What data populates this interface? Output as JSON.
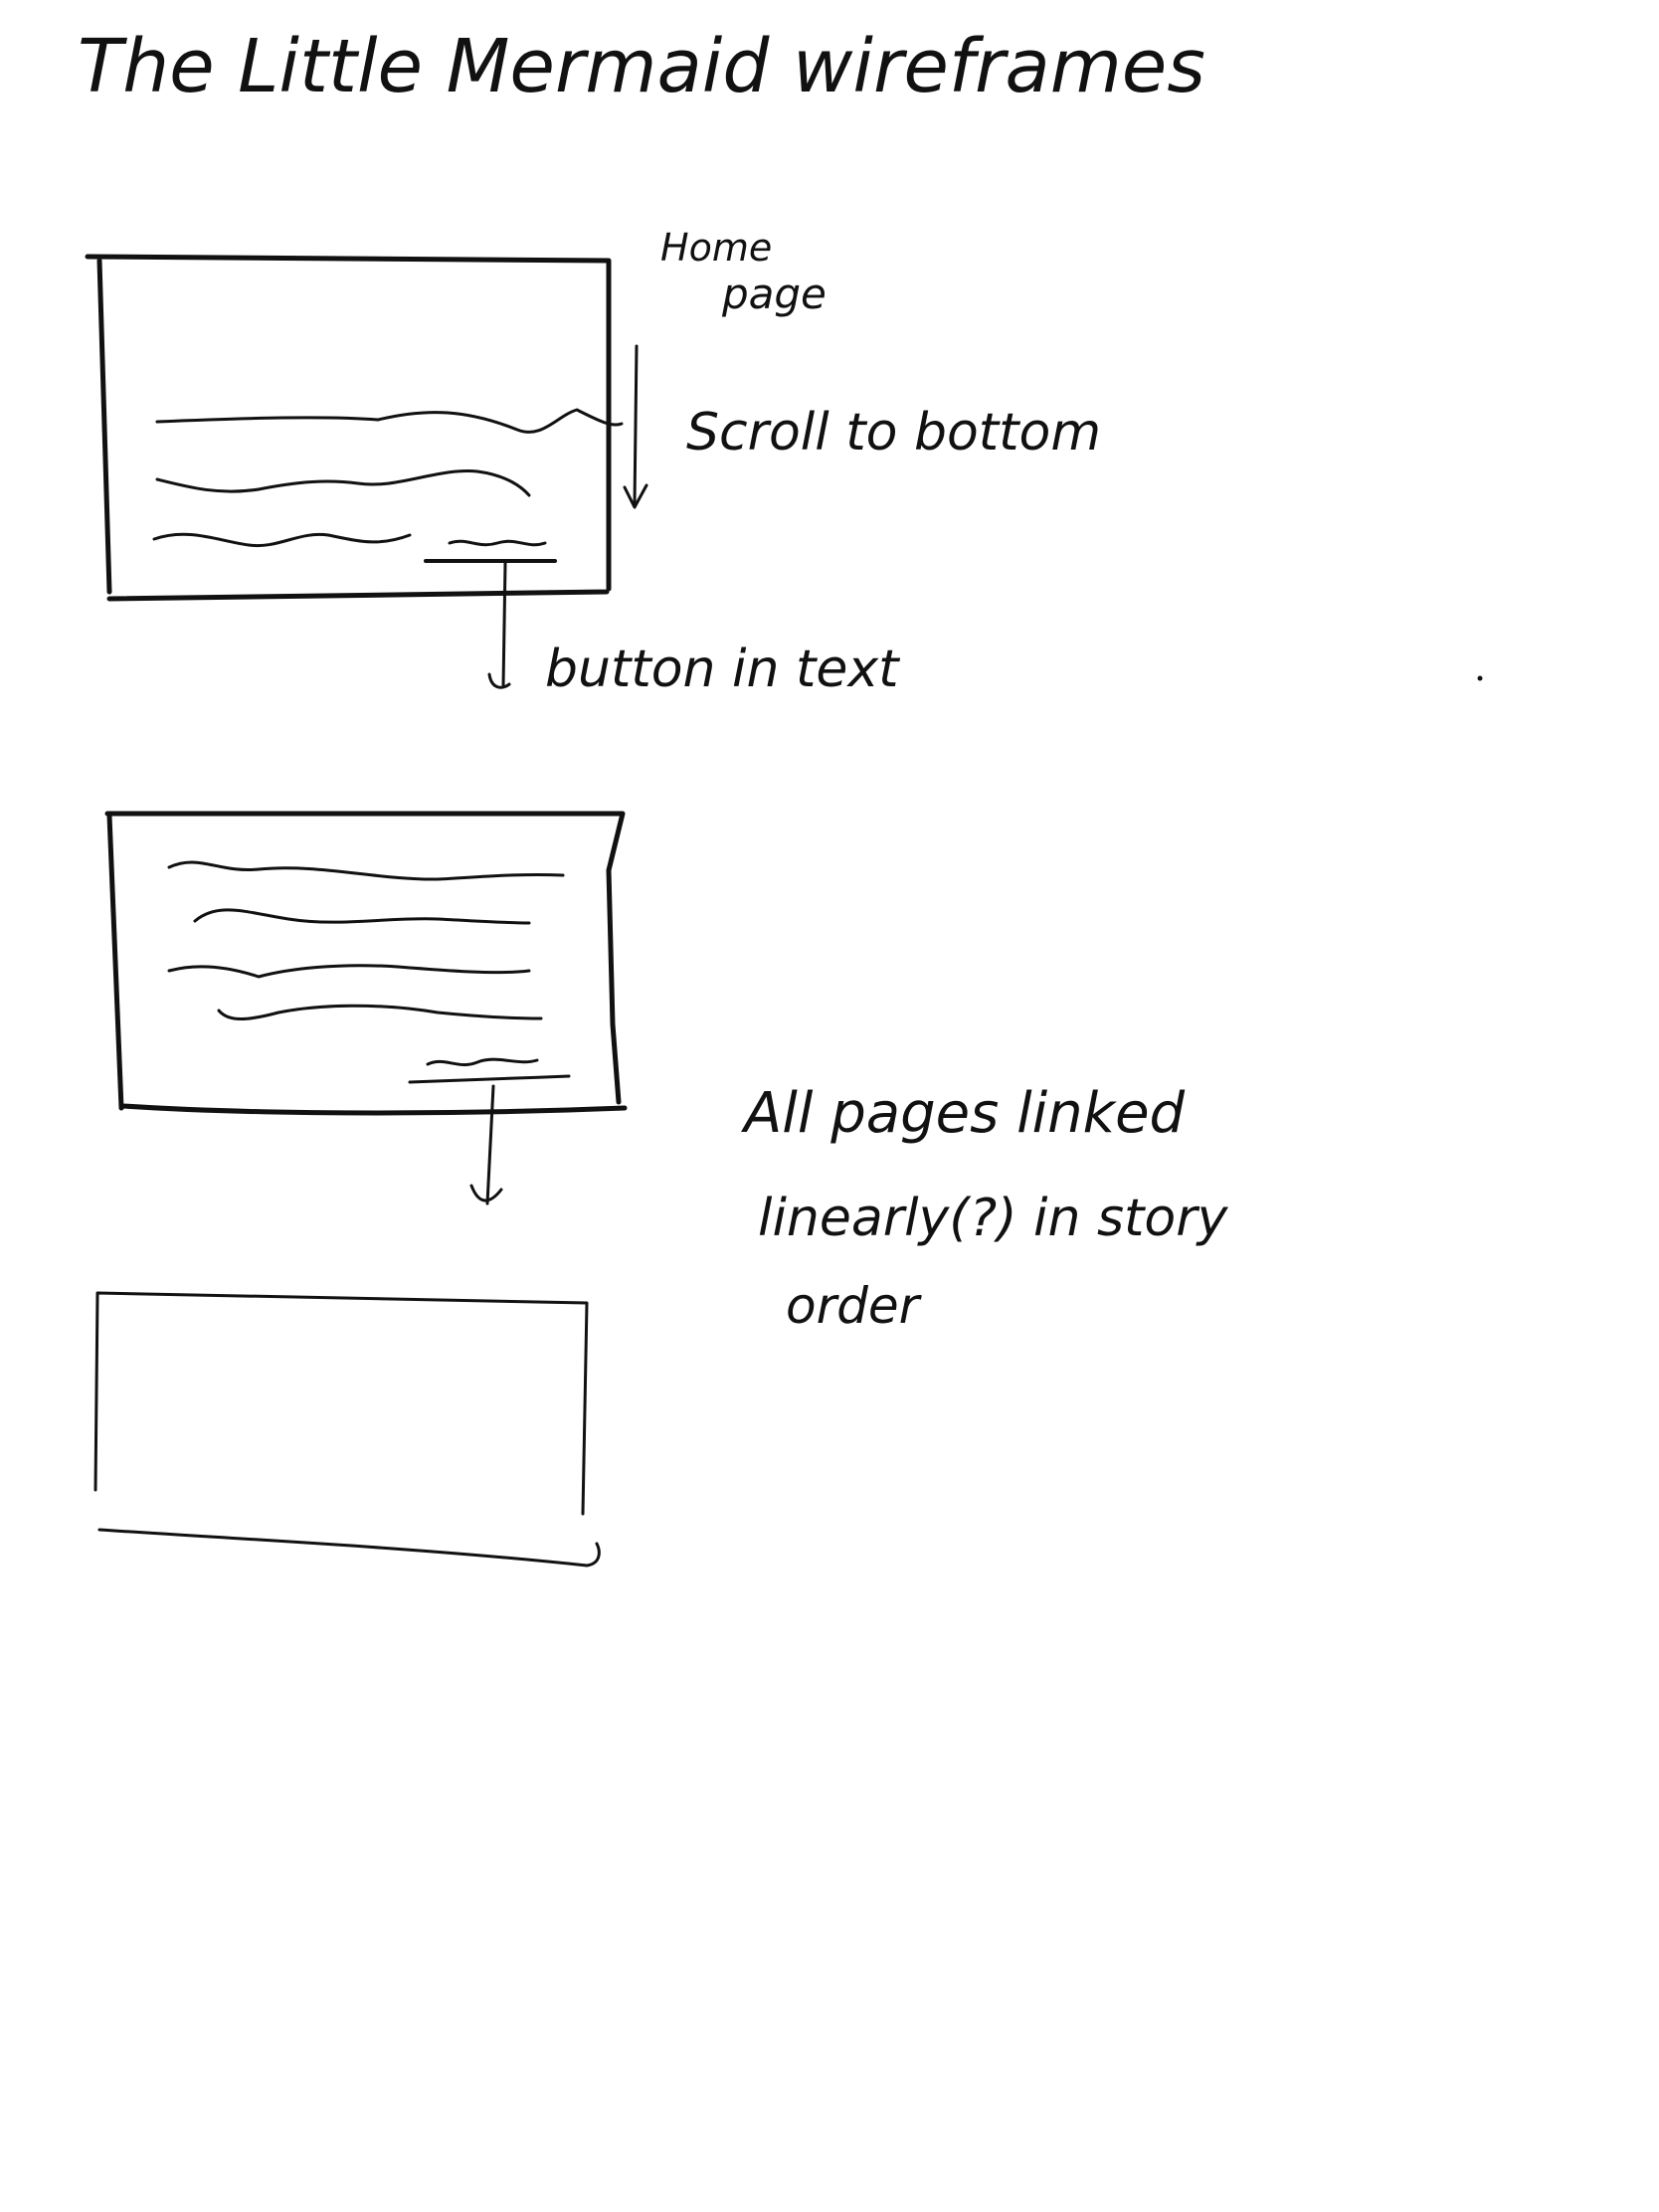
{
  "title": "The Little Mermaid wireframes",
  "annotations": {
    "home_page_line1": "Home",
    "home_page_line2": "page",
    "scroll": "Scroll to bottom",
    "button": "button in text",
    "linked_line1": "All pages linked",
    "linked_line2": "linearly(?) in story",
    "linked_line3": "order"
  },
  "wireframes": [
    {
      "label": "Home page",
      "text_lines": 3,
      "has_button": true
    },
    {
      "label": "",
      "text_lines": 4,
      "has_button": true
    },
    {
      "label": "",
      "text_lines": 0,
      "has_button": false
    }
  ],
  "colors": {
    "ink": "#111111",
    "paper": "#ffffff"
  }
}
